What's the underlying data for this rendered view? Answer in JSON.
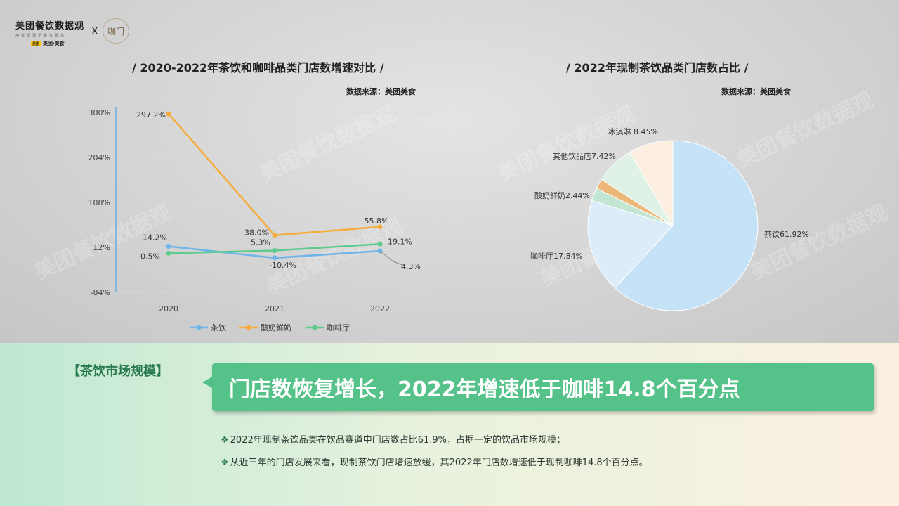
{
  "header": {
    "logo_main": "美团餐饮数据观",
    "logo_sub": "用数据洞见餐饮百态",
    "logo_brand_mark": "美团",
    "logo_brand": "美团·美食",
    "logo_x": "X",
    "badge_text": "咖门"
  },
  "watermark": "美团餐饮数据观",
  "line_panel": {
    "title": "/ 2020-2022年茶饮和咖啡品类门店数增速对比 /",
    "source": "数据来源：美团美食"
  },
  "pie_panel": {
    "title": "/ 2022年现制茶饮品类门店数占比 /",
    "source": "数据来源：美团美食"
  },
  "chart_data": [
    {
      "type": "line",
      "x": [
        "2020",
        "2021",
        "2022"
      ],
      "ylim": [
        -84,
        300
      ],
      "yticks": [
        "300%",
        "204%",
        "108%",
        "12%",
        "-84%"
      ],
      "series": [
        {
          "name": "茶饮",
          "color": "#6db4ea",
          "values": [
            14.2,
            -10.4,
            4.3
          ],
          "labels": [
            "14.2%",
            "-10.4%",
            "4.3%"
          ]
        },
        {
          "name": "酸奶鲜奶",
          "color": "#f5ac3c",
          "values": [
            297.2,
            38.0,
            55.8
          ],
          "labels": [
            "297.2%",
            "38.0%",
            "55.8%"
          ]
        },
        {
          "name": "咖啡厅",
          "color": "#5ccb8c",
          "values": [
            -0.5,
            5.3,
            19.1
          ],
          "labels": [
            "-0.5%",
            "5.3%",
            "19.1%"
          ]
        }
      ],
      "legend_position": "bottom"
    },
    {
      "type": "pie",
      "slices": [
        {
          "label": "茶饮61.92%",
          "value": 61.92,
          "color": "#c6e2f7"
        },
        {
          "label": "咖啡厅17.84%",
          "value": 17.84,
          "color": "#dcecf9"
        },
        {
          "label": "酸奶鲜奶2.44%",
          "value": 2.44,
          "color": "#c2e6d2"
        },
        {
          "label": "",
          "value": 1.93,
          "color": "#eeb77a"
        },
        {
          "label": "其他饮品店7.42%",
          "value": 7.42,
          "color": "#dff2e5"
        },
        {
          "label": "冰淇淋 8.45%",
          "value": 8.45,
          "color": "#fcefe0"
        }
      ]
    }
  ],
  "section": {
    "label": "【茶饮市场规模】",
    "headline": "门店数恢复增长，2022年增速低于咖啡14.8个百分点",
    "bullet_mark": "❖",
    "bullets": [
      "2022年现制茶饮品类在饮品赛道中门店数占比61.9%，占据一定的饮品市场规模；",
      "从近三年的门店发展来看，现制茶饮门店增速放缓，其2022年门店数增速低于现制咖啡14.8个百分点。"
    ]
  }
}
